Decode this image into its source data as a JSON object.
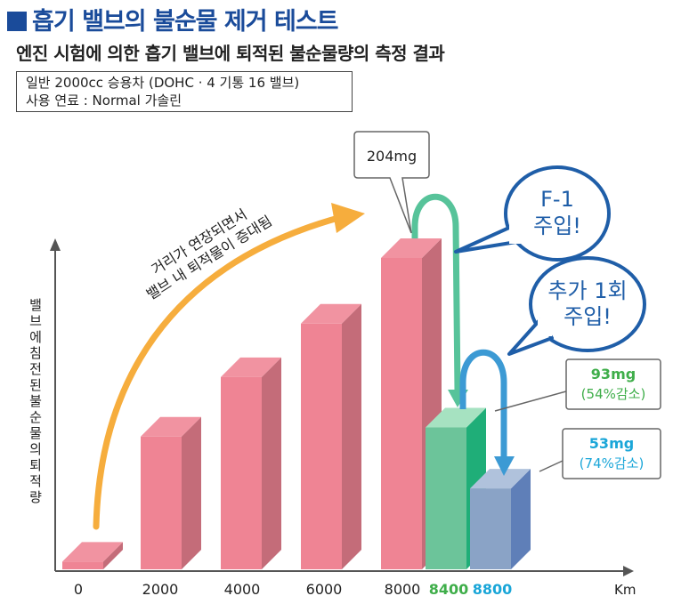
{
  "header": {
    "title": "흡기 밸브의 불순물 제거 테스트",
    "subtitle": "엔진 시험에 의한 흡기 밸브에 퇴적된 불순물량의 측정 결과"
  },
  "conditions": {
    "line1": "일반 2000cc 승용차 (DOHC · 4 기통 16 밸브)",
    "line2": "사용 연료 : Normal 가솔린"
  },
  "annotations": {
    "trend_line1": "거리가 연장되면서",
    "trend_line2": "밸브 내 퇴적물이 증대됨",
    "peak_label": "204mg",
    "f1_line1": "F-1",
    "f1_line2": "주입!",
    "extra_line1": "추가 1회",
    "extra_line2": "주입!",
    "r93_line1": "93mg",
    "r93_line2": "(54%감소)",
    "r53_line1": "53mg",
    "r53_line2": "(74%감소)"
  },
  "chart_data": {
    "type": "bar",
    "title": "흡기 밸브의 불순물 제거 테스트",
    "ylabel": "밸브에 침전된 불순물의 퇴적량",
    "xlabel": "Km",
    "categories": [
      "0",
      "2000",
      "4000",
      "6000",
      "8000",
      "8400",
      "8800"
    ],
    "values": [
      5,
      87,
      126,
      161,
      204,
      93,
      53
    ],
    "ylim": [
      0,
      230
    ],
    "data_labels": {
      "8000": "204mg",
      "8400": "93mg (54%감소)",
      "8800": "53mg (74%감소)"
    },
    "colors": {
      "base": "#ef8494",
      "f1": "#6cc49a",
      "extra": "#8aa3c6",
      "tick_f1": "#3fae4a",
      "tick_extra": "#1aa6d8",
      "trend_arrow": "#f6ad3d",
      "f1_arrow": "#57c39a",
      "extra_arrow": "#3c9ad4",
      "bubble": "#1f5ea8"
    },
    "legend": "none",
    "grid": false
  }
}
